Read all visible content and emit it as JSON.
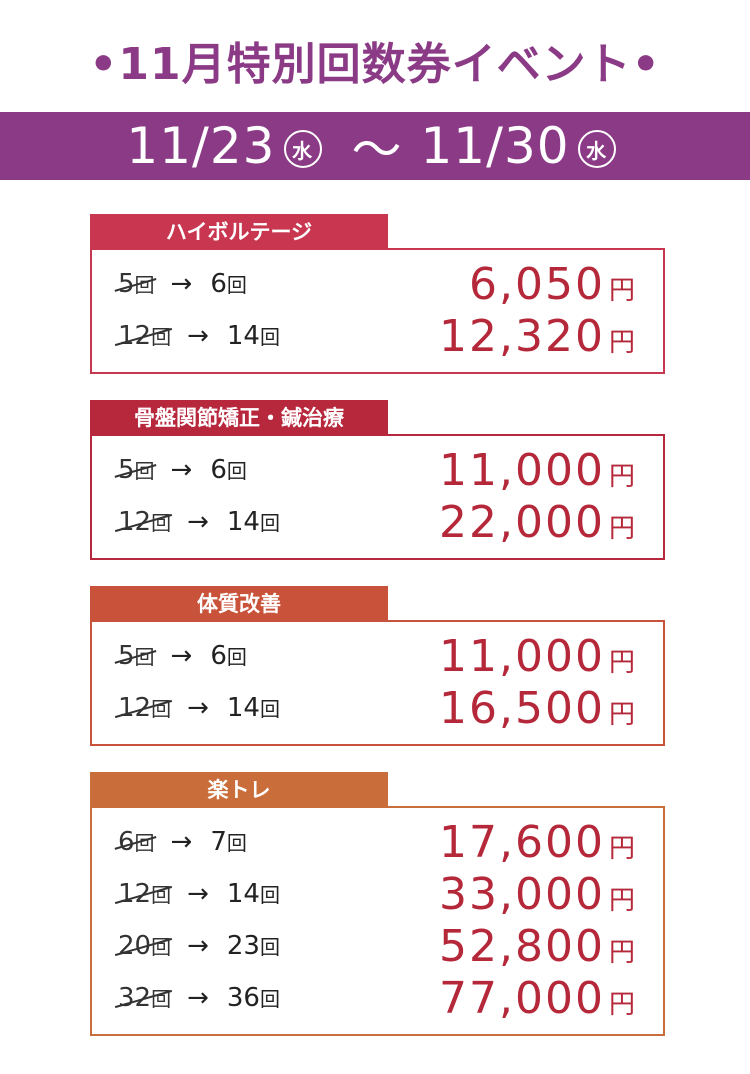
{
  "colors": {
    "accent": "#8b3a86",
    "section1": "#c9364f",
    "section2": "#b8283d",
    "section3": "#c9533a",
    "section4": "#c96e3a",
    "price": "#b5283a"
  },
  "header": {
    "title": "•11月特別回数券イベント•"
  },
  "banner": {
    "start": "11/23",
    "start_day": "水",
    "tilde": "～",
    "end": "11/30",
    "end_day": "水"
  },
  "sections": [
    {
      "name": "ハイボルテージ",
      "rows": [
        {
          "old": "5",
          "new": "6",
          "price": "6,050"
        },
        {
          "old": "12",
          "new": "14",
          "price": "12,320"
        }
      ]
    },
    {
      "name": "骨盤関節矯正・鍼治療",
      "rows": [
        {
          "old": "5",
          "new": "6",
          "price": "11,000"
        },
        {
          "old": "12",
          "new": "14",
          "price": "22,000"
        }
      ]
    },
    {
      "name": "体質改善",
      "rows": [
        {
          "old": "5",
          "new": "6",
          "price": "11,000"
        },
        {
          "old": "12",
          "new": "14",
          "price": "16,500"
        }
      ]
    },
    {
      "name": "楽トレ",
      "rows": [
        {
          "old": "6",
          "new": "7",
          "price": "17,600"
        },
        {
          "old": "12",
          "new": "14",
          "price": "33,000"
        },
        {
          "old": "20",
          "new": "23",
          "price": "52,800"
        },
        {
          "old": "32",
          "new": "36",
          "price": "77,000"
        }
      ]
    }
  ],
  "labels": {
    "kai": "回",
    "yen": "円",
    "arrow": "→"
  }
}
